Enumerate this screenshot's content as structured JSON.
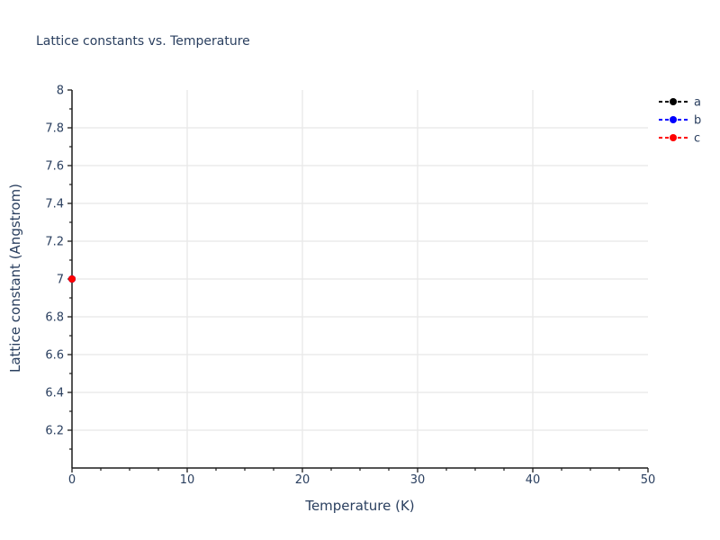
{
  "page": {
    "background": "#ffffff"
  },
  "chart_data": {
    "type": "scatter",
    "title": "Lattice constants vs. Temperature",
    "xlabel": "Temperature (K)",
    "ylabel": "Lattice constant (Angstrom)",
    "xlim": [
      0,
      50
    ],
    "ylim": [
      6.0,
      8.0
    ],
    "grid": true,
    "x_major_ticks": [
      0,
      10,
      20,
      30,
      40,
      50
    ],
    "x_tick_labels": [
      "0",
      "10",
      "20",
      "30",
      "40",
      "50"
    ],
    "x_minor_ticks": [
      2.5,
      5,
      7.5,
      12.5,
      15,
      17.5,
      22.5,
      25,
      27.5,
      32.5,
      35,
      37.5,
      42.5,
      45,
      47.5
    ],
    "x_gridlines": [
      10,
      20,
      30,
      40
    ],
    "y_major_ticks": [
      6.2,
      6.4,
      6.6,
      6.8,
      7,
      7.2,
      7.4,
      7.6,
      7.8,
      8
    ],
    "y_tick_labels": [
      "6.2",
      "6.4",
      "6.6",
      "6.8",
      "7",
      "7.2",
      "7.4",
      "7.6",
      "7.8",
      "8"
    ],
    "y_minor_ticks": [
      6.1,
      6.3,
      6.5,
      6.7,
      6.9,
      7.1,
      7.3,
      7.5,
      7.7,
      7.9
    ],
    "y_gridlines": [
      6.2,
      6.4,
      6.6,
      6.8,
      7,
      7.2,
      7.4,
      7.6,
      7.8
    ],
    "legend": {
      "position": "outside-top-right",
      "entries": [
        "a",
        "b",
        "c"
      ]
    },
    "series": [
      {
        "name": "a",
        "color": "#000000",
        "line_style": "dashed",
        "marker": "circle",
        "x": [
          0
        ],
        "y": [
          7.0
        ]
      },
      {
        "name": "b",
        "color": "#0000ff",
        "line_style": "dashed",
        "marker": "circle",
        "x": [
          0
        ],
        "y": [
          7.0
        ]
      },
      {
        "name": "c",
        "color": "#ff0000",
        "line_style": "dashed",
        "marker": "circle",
        "x": [
          0
        ],
        "y": [
          7.0
        ]
      }
    ],
    "colors": {
      "text": "#2a3f5f",
      "grid": "#e8e8e8",
      "axis": "#1c1c1c"
    }
  }
}
